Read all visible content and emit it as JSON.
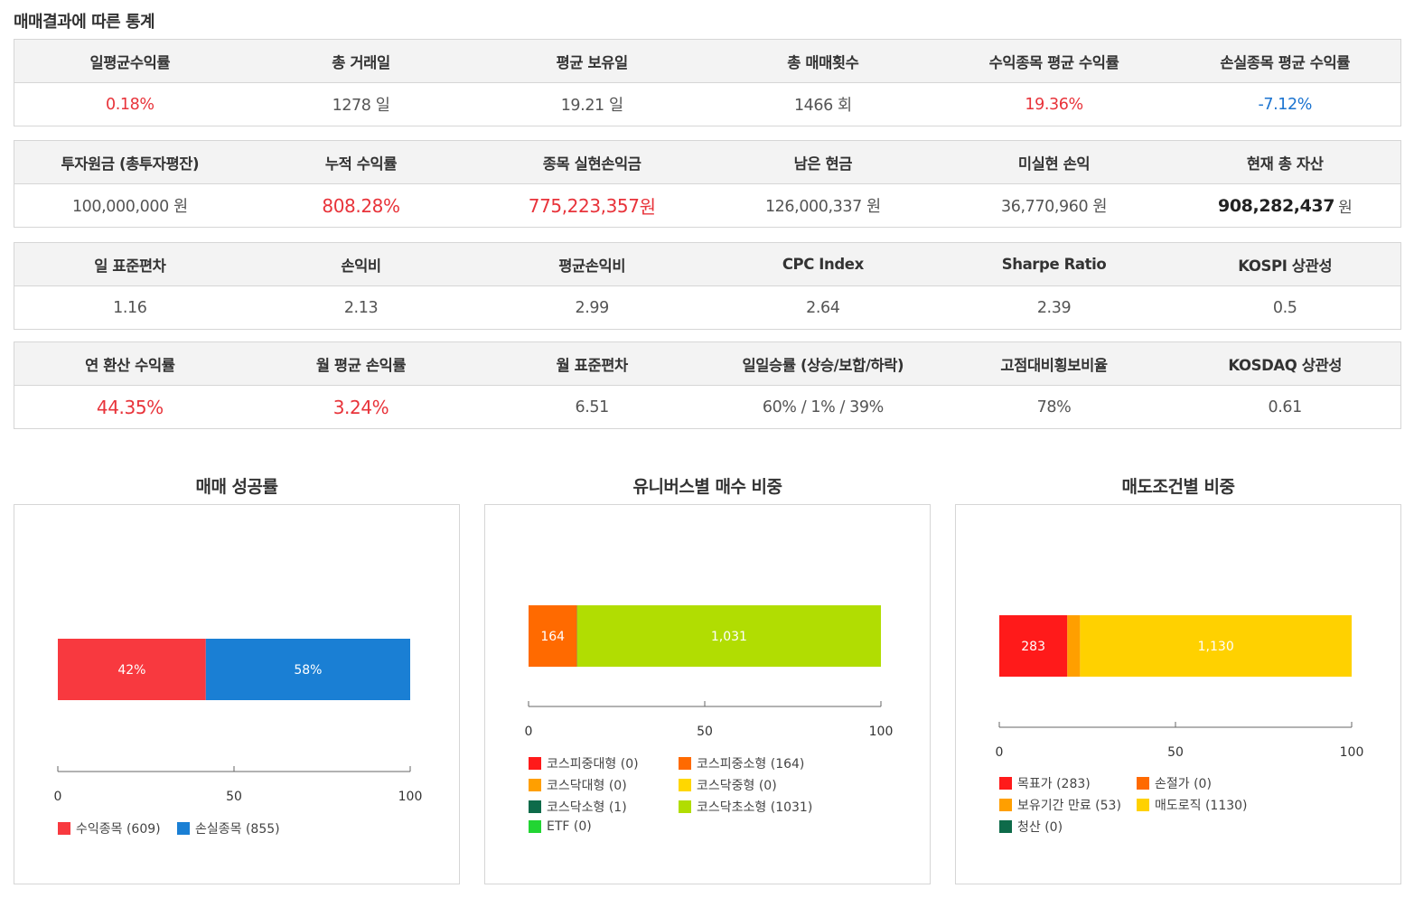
{
  "page_title": "매매결과에 따른 통계",
  "tables": [
    {
      "headers": [
        "일평균수익률",
        "총 거래일",
        "평균 보유일",
        "총 매매횟수",
        "수익종목 평균 수익률",
        "손실종목 평균 수익률"
      ],
      "values": [
        "0.18%",
        "1278 일",
        "19.21 일",
        "1466 회",
        "19.36%",
        "-7.12%"
      ]
    },
    {
      "headers": [
        "투자원금 (총투자평잔)",
        "누적 수익률",
        "종목 실현손익금",
        "남은 현금",
        "미실현 손익",
        "현재 총 자산"
      ],
      "values": [
        "100,000,000 원",
        "808.28%",
        "775,223,357",
        "126,000,337 원",
        "36,770,960 원",
        "908,282,437"
      ],
      "unit_realized": "원",
      "unit_total": "원"
    },
    {
      "headers": [
        "일 표준편차",
        "손익비",
        "평균손익비",
        "CPC Index",
        "Sharpe Ratio",
        "KOSPI 상관성"
      ],
      "values": [
        "1.16",
        "2.13",
        "2.99",
        "2.64",
        "2.39",
        "0.5"
      ]
    },
    {
      "headers": [
        "연 환산 수익률",
        "월 평균 손익률",
        "월 표준편차",
        "일일승률 (상승/보합/하락)",
        "고점대비횡보비율",
        "KOSDAQ 상관성"
      ],
      "values": [
        "44.35%",
        "3.24%",
        "6.51",
        "60% / 1% / 39%",
        "78%",
        "0.61"
      ]
    }
  ],
  "colors": {
    "red": "#e8333a",
    "blue": "#1a73d0"
  },
  "chart_data": [
    {
      "type": "bar",
      "title": "매매 성공률",
      "orientation": "horizontal-stacked-percent",
      "xlim": [
        0,
        100
      ],
      "ticks": [
        "0",
        "50",
        "100"
      ],
      "series": [
        {
          "name": "수익종목 (609)",
          "value": 42,
          "label": "42%",
          "color": "#f8393f"
        },
        {
          "name": "손실종목 (855)",
          "value": 58,
          "label": "58%",
          "color": "#1a7fd4"
        }
      ]
    },
    {
      "type": "bar",
      "title": "유니버스별 매수 비중",
      "orientation": "horizontal-stacked-percent",
      "xlim": [
        0,
        100
      ],
      "ticks": [
        "0",
        "50",
        "100"
      ],
      "series": [
        {
          "name": "코스피중대형 (0)",
          "count": 0,
          "label": "",
          "color": "#ff1a1a"
        },
        {
          "name": "코스피중소형 (164)",
          "count": 164,
          "label": "164",
          "color": "#ff6a00"
        },
        {
          "name": "코스닥대형 (0)",
          "count": 0,
          "label": "",
          "color": "#ff9f00"
        },
        {
          "name": "코스닥중형 (0)",
          "count": 0,
          "label": "",
          "color": "#ffd700"
        },
        {
          "name": "코스닥소형 (1)",
          "count": 1,
          "label": "",
          "color": "#0e6b4a"
        },
        {
          "name": "코스닥초소형 (1031)",
          "count": 1031,
          "label": "1,031",
          "color": "#b1dd02"
        },
        {
          "name": "ETF (0)",
          "count": 0,
          "label": "",
          "color": "#22d533"
        }
      ]
    },
    {
      "type": "bar",
      "title": "매도조건별 비중",
      "orientation": "horizontal-stacked-percent",
      "xlim": [
        0,
        100
      ],
      "ticks": [
        "0",
        "50",
        "100"
      ],
      "series": [
        {
          "name": "목표가 (283)",
          "count": 283,
          "label": "283",
          "color": "#ff1a1a"
        },
        {
          "name": "손절가 (0)",
          "count": 0,
          "label": "",
          "color": "#ff6a00"
        },
        {
          "name": "보유기간 만료 (53)",
          "count": 53,
          "label": "",
          "color": "#ff9f00"
        },
        {
          "name": "매도로직 (1130)",
          "count": 1130,
          "label": "1,130",
          "color": "#ffd100"
        },
        {
          "name": "청산 (0)",
          "count": 0,
          "label": "",
          "color": "#0e6b4a"
        }
      ]
    }
  ]
}
